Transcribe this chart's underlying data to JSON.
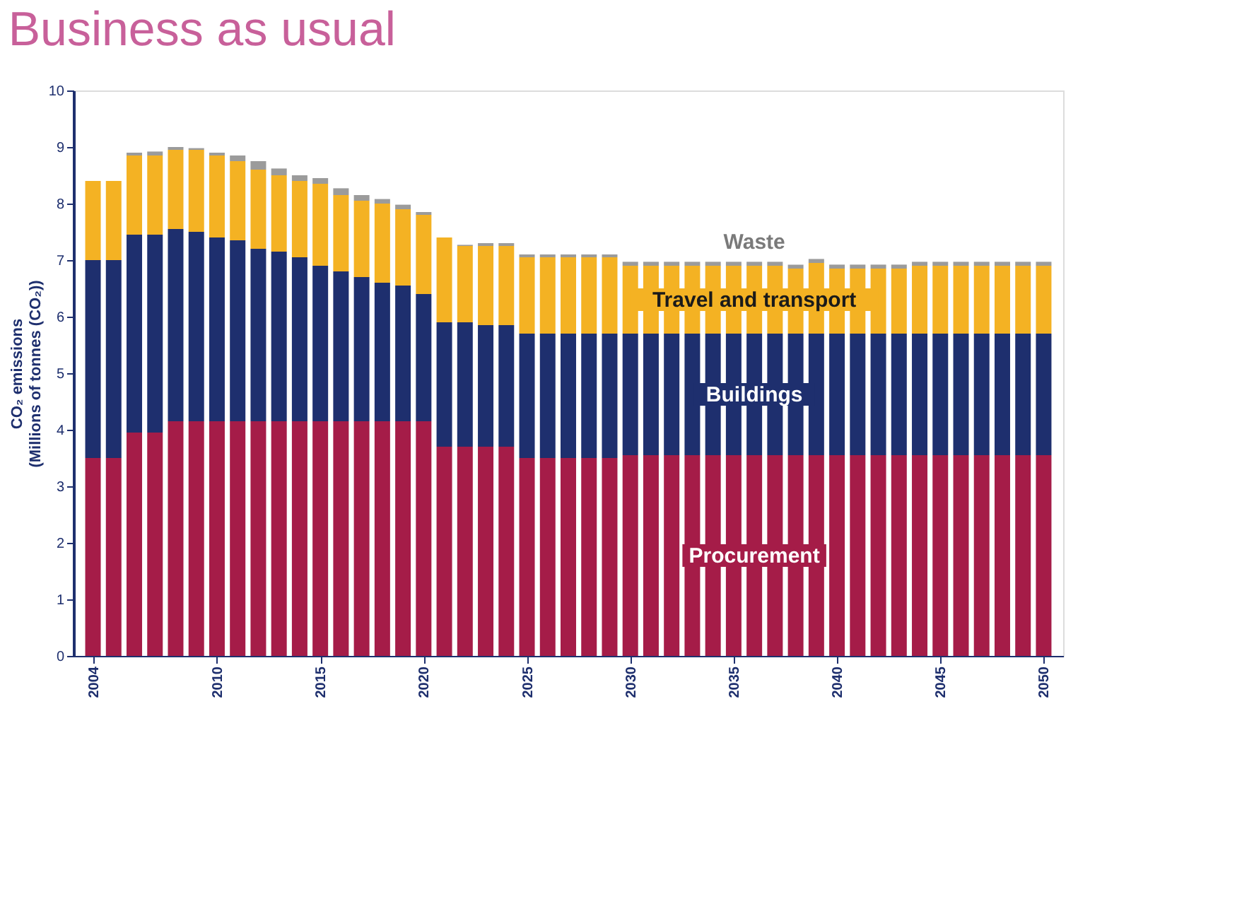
{
  "chart_data": {
    "type": "bar",
    "stacked": true,
    "title": "Business as usual",
    "ylabel": "CO₂ emissions\n(Millions of tonnes (CO₂))",
    "x": [
      2004,
      2005,
      2006,
      2007,
      2008,
      2009,
      2010,
      2011,
      2012,
      2013,
      2014,
      2015,
      2016,
      2017,
      2018,
      2019,
      2020,
      2021,
      2022,
      2023,
      2024,
      2025,
      2026,
      2027,
      2028,
      2029,
      2030,
      2031,
      2032,
      2033,
      2034,
      2035,
      2036,
      2037,
      2038,
      2039,
      2040,
      2041,
      2042,
      2043,
      2044,
      2045,
      2046,
      2047,
      2048,
      2049,
      2050
    ],
    "xlim": [
      2003.4,
      2050.6
    ],
    "xticks": [
      2004,
      2010,
      2015,
      2020,
      2025,
      2030,
      2035,
      2040,
      2045,
      2050
    ],
    "ylim": [
      0,
      10
    ],
    "yticks": [
      0,
      1,
      2,
      3,
      4,
      5,
      6,
      7,
      8,
      9,
      10
    ],
    "grid": false,
    "series": [
      {
        "name": "Procurement",
        "color": "#a51c48",
        "values": [
          3.5,
          3.5,
          3.95,
          3.95,
          4.15,
          4.15,
          4.15,
          4.15,
          4.15,
          4.15,
          4.15,
          4.15,
          4.15,
          4.15,
          4.15,
          4.15,
          4.15,
          3.7,
          3.7,
          3.7,
          3.7,
          3.5,
          3.5,
          3.5,
          3.5,
          3.5,
          3.55,
          3.55,
          3.55,
          3.55,
          3.55,
          3.55,
          3.55,
          3.55,
          3.55,
          3.55,
          3.55,
          3.55,
          3.55,
          3.55,
          3.55,
          3.55,
          3.55,
          3.55,
          3.55,
          3.55,
          3.55
        ]
      },
      {
        "name": "Buildings",
        "color": "#1e2f6e",
        "values": [
          3.5,
          3.5,
          3.5,
          3.5,
          3.4,
          3.35,
          3.25,
          3.2,
          3.05,
          3.0,
          2.9,
          2.75,
          2.65,
          2.55,
          2.45,
          2.4,
          2.25,
          2.2,
          2.2,
          2.15,
          2.15,
          2.2,
          2.2,
          2.2,
          2.2,
          2.2,
          2.15,
          2.15,
          2.15,
          2.15,
          2.15,
          2.15,
          2.15,
          2.15,
          2.15,
          2.15,
          2.15,
          2.15,
          2.15,
          2.15,
          2.15,
          2.15,
          2.15,
          2.15,
          2.15,
          2.15,
          2.15
        ]
      },
      {
        "name": "Travel and transport",
        "color": "#f4b223",
        "values": [
          1.4,
          1.4,
          1.4,
          1.4,
          1.4,
          1.45,
          1.45,
          1.4,
          1.4,
          1.35,
          1.35,
          1.45,
          1.35,
          1.35,
          1.4,
          1.35,
          1.4,
          1.5,
          1.35,
          1.4,
          1.4,
          1.35,
          1.35,
          1.35,
          1.35,
          1.35,
          1.2,
          1.2,
          1.2,
          1.2,
          1.2,
          1.2,
          1.2,
          1.2,
          1.15,
          1.25,
          1.15,
          1.15,
          1.15,
          1.15,
          1.2,
          1.2,
          1.2,
          1.2,
          1.2,
          1.2,
          1.2
        ]
      },
      {
        "name": "Waste",
        "color": "#9b9b9b",
        "values": [
          0,
          0,
          0.05,
          0.07,
          0.05,
          0.03,
          0.05,
          0.1,
          0.15,
          0.12,
          0.1,
          0.1,
          0.12,
          0.1,
          0.08,
          0.08,
          0.05,
          0,
          0.02,
          0.05,
          0.05,
          0.05,
          0.05,
          0.05,
          0.05,
          0.05,
          0.07,
          0.07,
          0.07,
          0.07,
          0.07,
          0.07,
          0.07,
          0.07,
          0.07,
          0.07,
          0.07,
          0.07,
          0.07,
          0.07,
          0.07,
          0.07,
          0.07,
          0.07,
          0.07,
          0.07,
          0.07
        ]
      }
    ]
  }
}
